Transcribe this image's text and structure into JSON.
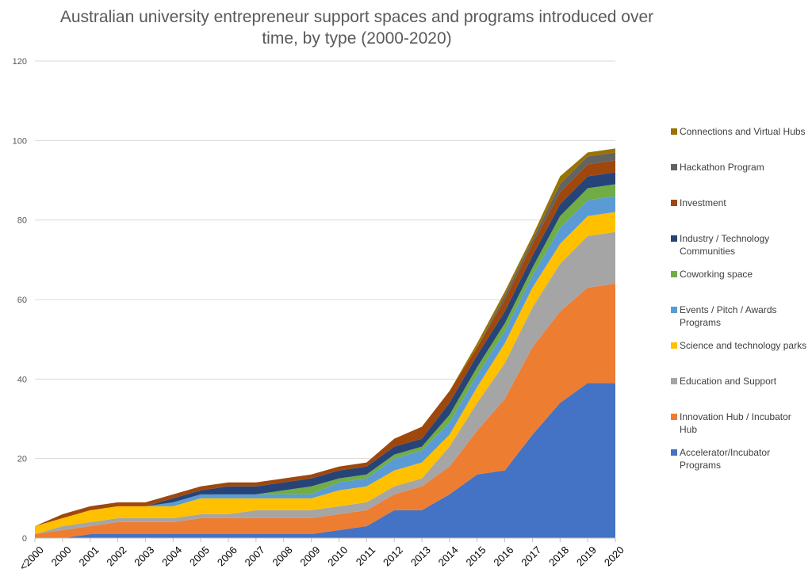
{
  "chart_data": {
    "type": "area",
    "stacked": true,
    "title": "Australian university entrepreneur support spaces and programs introduced over time, by type (2000-2020)",
    "categories": [
      "<2000",
      "2000",
      "2001",
      "2002",
      "2003",
      "2004",
      "2005",
      "2006",
      "2007",
      "2008",
      "2009",
      "2010",
      "2011",
      "2012",
      "2013",
      "2014",
      "2015",
      "2016",
      "2017",
      "2018",
      "2019",
      "2020"
    ],
    "ylim": [
      0,
      120
    ],
    "yticks": [
      0,
      20,
      40,
      60,
      80,
      100,
      120
    ],
    "grid": true,
    "legend_position": "right",
    "series": [
      {
        "name": "Accelerator/Incubator Programs",
        "color": "#4472C4",
        "values": [
          0,
          0,
          1,
          1,
          1,
          1,
          1,
          1,
          1,
          1,
          1,
          2,
          3,
          7,
          7,
          11,
          16,
          17,
          26,
          34,
          39,
          39
        ]
      },
      {
        "name": "Innovation Hub / Incubator Hub",
        "color": "#ED7D31",
        "values": [
          1,
          2,
          2,
          3,
          3,
          3,
          4,
          4,
          4,
          4,
          4,
          4,
          4,
          4,
          6,
          7,
          11,
          18,
          22,
          23,
          24,
          25
        ]
      },
      {
        "name": "Education and Support",
        "color": "#A5A5A5",
        "values": [
          0,
          1,
          1,
          1,
          1,
          1,
          1,
          1,
          2,
          2,
          2,
          2,
          2,
          2,
          2,
          5,
          7,
          9,
          10,
          12,
          13,
          13
        ]
      },
      {
        "name": "Science and technology parks",
        "color": "#FFC000",
        "values": [
          2,
          2,
          3,
          3,
          3,
          3,
          4,
          4,
          3,
          3,
          3,
          4,
          4,
          4,
          4,
          3,
          4,
          5,
          5,
          5,
          5,
          5
        ]
      },
      {
        "name": "Events / Pitch / Awards Programs",
        "color": "#5B9BD5",
        "values": [
          0,
          0,
          0,
          0,
          0,
          1,
          1,
          1,
          1,
          1,
          1,
          2,
          2,
          3,
          3,
          3,
          3,
          3,
          3,
          4,
          4,
          4
        ]
      },
      {
        "name": "Coworking space",
        "color": "#70AD47",
        "values": [
          0,
          0,
          0,
          0,
          0,
          0,
          0,
          0,
          0,
          1,
          2,
          1,
          1,
          1,
          1,
          2,
          2,
          2,
          2,
          3,
          3,
          3
        ]
      },
      {
        "name": "Industry / Technology Communities",
        "color": "#264478",
        "values": [
          0,
          0,
          0,
          0,
          0,
          1,
          1,
          2,
          2,
          2,
          2,
          2,
          2,
          2,
          2,
          3,
          3,
          3,
          3,
          3,
          3,
          3
        ]
      },
      {
        "name": "Investment",
        "color": "#9E480E",
        "values": [
          0,
          1,
          1,
          1,
          1,
          1,
          1,
          1,
          1,
          1,
          1,
          1,
          1,
          2,
          3,
          3,
          2,
          3,
          3,
          3,
          3,
          3
        ]
      },
      {
        "name": "Hackathon Program",
        "color": "#636363",
        "values": [
          0,
          0,
          0,
          0,
          0,
          0,
          0,
          0,
          0,
          0,
          0,
          0,
          0,
          0,
          0,
          0,
          0,
          1,
          1,
          2,
          2,
          2
        ]
      },
      {
        "name": "Connections and Virtual Hubs",
        "color": "#997300",
        "values": [
          0,
          0,
          0,
          0,
          0,
          0,
          0,
          0,
          0,
          0,
          0,
          0,
          0,
          0,
          0,
          0,
          1,
          1,
          1,
          2,
          1,
          1
        ]
      }
    ]
  },
  "legend": {
    "items": [
      {
        "label": "Connections and Virtual Hubs",
        "color": "#997300"
      },
      {
        "label": "Hackathon Program",
        "color": "#636363"
      },
      {
        "label": "Investment",
        "color": "#9E480E"
      },
      {
        "label": "Industry / Technology Communities",
        "color": "#264478"
      },
      {
        "label": "Coworking space",
        "color": "#70AD47"
      },
      {
        "label": "Events / Pitch / Awards Programs",
        "color": "#5B9BD5"
      },
      {
        "label": "Science and technology parks",
        "color": "#FFC000"
      },
      {
        "label": "Education and Support",
        "color": "#A5A5A5"
      },
      {
        "label": "Innovation Hub / Incubator Hub",
        "color": "#ED7D31"
      },
      {
        "label": "Accelerator/Incubator Programs",
        "color": "#4472C4"
      }
    ]
  }
}
